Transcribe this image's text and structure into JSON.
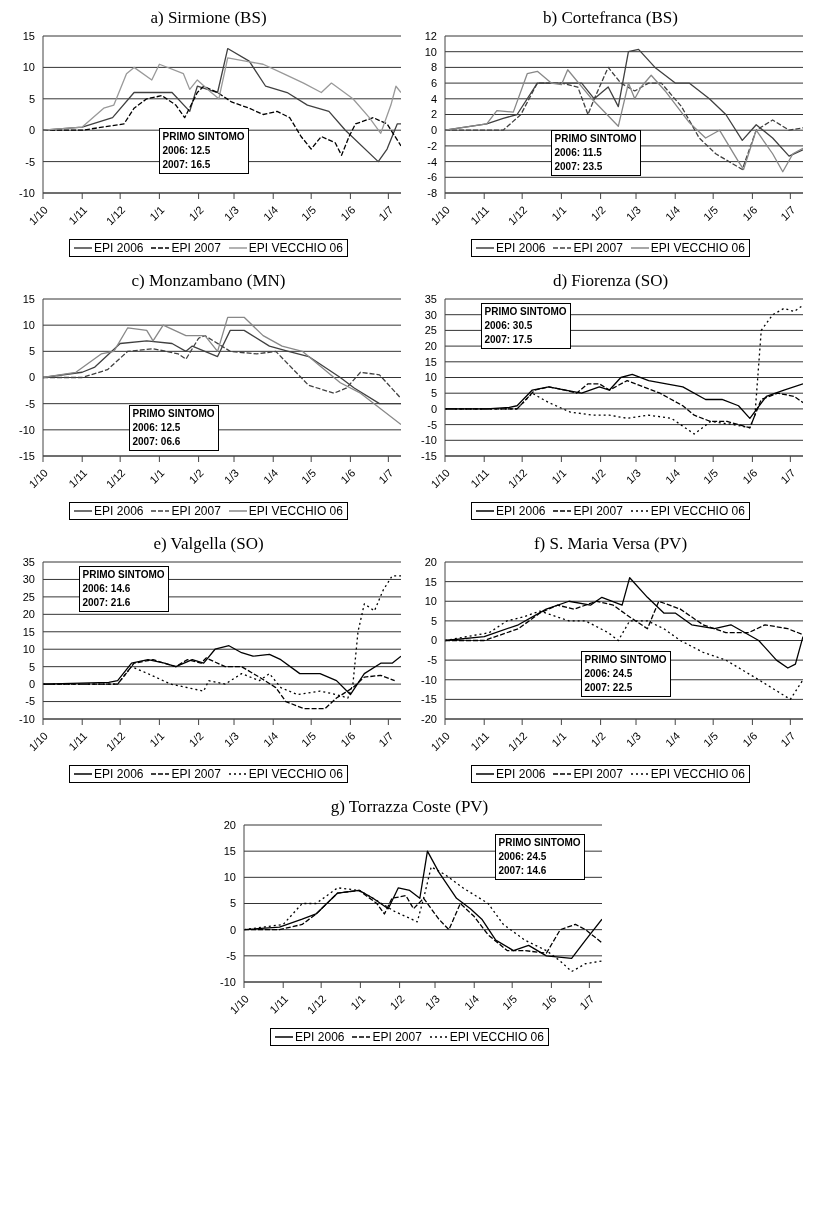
{
  "chart_data": [
    {
      "type": "line",
      "title": "a) Sirmione (BS)",
      "annotations": [
        "PRIMO SINTOMO",
        "2006: 12.5",
        "2007: 16.5"
      ],
      "xlim": [
        "2006-10-01",
        "2007-07-11"
      ],
      "xticks": [
        {
          "value": "2006-10-01",
          "label": "1/10"
        },
        {
          "value": "2006-11-01",
          "label": "1/11"
        },
        {
          "value": "2006-12-01",
          "label": "1/12"
        },
        {
          "value": "2007-01-01",
          "label": "1/1"
        },
        {
          "value": "2007-02-01",
          "label": "1/2"
        },
        {
          "value": "2007-03-01",
          "label": "1/3"
        },
        {
          "value": "2007-04-01",
          "label": "1/4"
        },
        {
          "value": "2007-05-01",
          "label": "1/5"
        },
        {
          "value": "2007-06-01",
          "label": "1/6"
        },
        {
          "value": "2007-07-01",
          "label": "1/7"
        }
      ],
      "ylim": [
        -10,
        15
      ],
      "yticks": [
        -10,
        -5,
        0,
        5,
        10,
        15
      ],
      "grid": "y",
      "legend": "bottom",
      "series": [
        {
          "name": "EPI 2006",
          "color": "#404040",
          "line_style": "solid",
          "x": [
            "2006-10-01",
            "2006-11-01",
            "2006-11-25",
            "2006-12-12",
            "2007-01-03",
            "2007-01-11",
            "2007-01-25",
            "2007-01-31",
            "2007-02-16",
            "2007-02-24",
            "2007-03-13",
            "2007-03-26",
            "2007-04-12",
            "2007-04-28",
            "2007-05-15",
            "2007-05-28",
            "2007-06-23",
            "2007-06-30",
            "2007-07-08",
            "2007-07-11"
          ],
          "values": [
            0,
            0.5,
            2,
            6,
            6,
            6,
            3,
            7,
            6,
            13,
            11,
            7,
            6,
            4,
            3,
            0,
            -5,
            -3,
            1,
            1
          ]
        },
        {
          "name": "EPI 2007",
          "color": "#000000",
          "line_style": "dashed",
          "x": [
            "2006-10-01",
            "2006-11-01",
            "2006-12-04",
            "2006-12-12",
            "2006-12-22",
            "2007-01-03",
            "2007-01-14",
            "2007-01-21",
            "2007-01-31",
            "2007-02-05",
            "2007-02-16",
            "2007-02-27",
            "2007-03-13",
            "2007-03-24",
            "2007-04-04",
            "2007-04-14",
            "2007-04-23",
            "2007-05-01",
            "2007-05-09",
            "2007-05-20",
            "2007-05-25",
            "2007-05-31",
            "2007-06-05",
            "2007-06-19",
            "2007-06-30",
            "2007-07-11"
          ],
          "values": [
            0,
            0,
            1,
            3.5,
            5,
            5.5,
            4,
            2,
            6,
            7,
            6,
            4.5,
            3.5,
            2.5,
            3,
            2,
            -1,
            -3,
            -1,
            -2,
            -4,
            -1,
            1,
            2,
            1,
            -2.5
          ]
        },
        {
          "name": "EPI VECCHIO 06",
          "color": "#999999",
          "line_style": "solid",
          "x": [
            "2006-10-01",
            "2006-11-01",
            "2006-11-18",
            "2006-11-26",
            "2006-12-06",
            "2006-12-12",
            "2006-12-26",
            "2007-01-01",
            "2007-01-20",
            "2007-01-25",
            "2007-01-31",
            "2007-02-11",
            "2007-02-17",
            "2007-02-24",
            "2007-03-10",
            "2007-03-24",
            "2007-04-09",
            "2007-04-25",
            "2007-05-09",
            "2007-05-17",
            "2007-06-03",
            "2007-06-16",
            "2007-06-25",
            "2007-07-03",
            "2007-07-07",
            "2007-07-11"
          ],
          "values": [
            0,
            0.5,
            3.5,
            4,
            9,
            10,
            8,
            10.5,
            9,
            6.5,
            8,
            6,
            5,
            11.5,
            11,
            10.5,
            9,
            7.5,
            6,
            7.5,
            5,
            2,
            -0.5,
            4,
            7,
            6
          ]
        }
      ]
    },
    {
      "type": "line",
      "title": "b) Cortefranca (BS)",
      "annotations": [
        "PRIMO SINTOMO",
        "2006: 11.5",
        "2007: 23.5"
      ],
      "xlim": [
        "2006-10-01",
        "2007-07-11"
      ],
      "xticks": [
        {
          "value": "2006-10-01",
          "label": "1/10"
        },
        {
          "value": "2006-11-01",
          "label": "1/11"
        },
        {
          "value": "2006-12-01",
          "label": "1/12"
        },
        {
          "value": "2007-01-01",
          "label": "1/1"
        },
        {
          "value": "2007-02-01",
          "label": "1/2"
        },
        {
          "value": "2007-03-01",
          "label": "1/3"
        },
        {
          "value": "2007-04-01",
          "label": "1/4"
        },
        {
          "value": "2007-05-01",
          "label": "1/5"
        },
        {
          "value": "2007-06-01",
          "label": "1/6"
        },
        {
          "value": "2007-07-01",
          "label": "1/7"
        }
      ],
      "ylim": [
        -8,
        12
      ],
      "yticks": [
        -8,
        -6,
        -4,
        -2,
        0,
        2,
        4,
        6,
        8,
        10,
        12
      ],
      "grid": "y",
      "legend": "bottom",
      "series": [
        {
          "name": "EPI 2006",
          "color": "#404040",
          "line_style": "solid",
          "x": [
            "2006-10-01",
            "2006-11-03",
            "2006-11-16",
            "2006-11-27",
            "2006-12-13",
            "2007-01-01",
            "2007-01-17",
            "2007-01-27",
            "2007-02-07",
            "2007-02-15",
            "2007-02-23",
            "2007-03-03",
            "2007-03-16",
            "2007-04-01",
            "2007-04-12",
            "2007-04-28",
            "2007-05-11",
            "2007-05-24",
            "2007-06-04",
            "2007-06-17",
            "2007-06-30",
            "2007-07-11"
          ],
          "values": [
            0,
            0.8,
            1.5,
            2,
            6,
            6,
            6,
            4,
            5.5,
            3,
            10,
            10.3,
            8,
            6,
            6,
            4,
            2,
            -1.3,
            0.7,
            -1,
            -3.3,
            -2.5
          ]
        },
        {
          "name": "EPI 2007",
          "color": "#404040",
          "line_style": "dashed",
          "x": [
            "2006-10-01",
            "2006-11-16",
            "2006-11-30",
            "2006-12-13",
            "2007-01-01",
            "2007-01-14",
            "2007-01-22",
            "2007-01-27",
            "2007-02-07",
            "2007-02-17",
            "2007-02-28",
            "2007-03-11",
            "2007-03-21",
            "2007-04-06",
            "2007-04-20",
            "2007-05-03",
            "2007-05-24",
            "2007-06-04",
            "2007-06-17",
            "2007-06-30",
            "2007-07-11"
          ],
          "values": [
            0,
            0,
            2,
            6,
            6,
            5.5,
            2,
            4,
            8,
            6,
            5,
            6,
            6,
            3,
            -1,
            -3,
            -5,
            0,
            1.3,
            0,
            0.3
          ]
        },
        {
          "name": "EPI VECCHIO 06",
          "color": "#888888",
          "line_style": "solid",
          "x": [
            "2006-10-01",
            "2006-11-03",
            "2006-11-11",
            "2006-11-24",
            "2006-12-05",
            "2006-12-13",
            "2006-12-24",
            "2007-01-01",
            "2007-01-06",
            "2007-01-25",
            "2007-02-15",
            "2007-02-23",
            "2007-02-28",
            "2007-03-05",
            "2007-03-13",
            "2007-03-24",
            "2007-04-12",
            "2007-04-25",
            "2007-05-06",
            "2007-05-21",
            "2007-05-25",
            "2007-06-04",
            "2007-06-17",
            "2007-06-25",
            "2007-07-03",
            "2007-07-11"
          ],
          "values": [
            0,
            0.8,
            2.5,
            2.3,
            7.2,
            7.5,
            6,
            5.8,
            7.7,
            4,
            0.5,
            6,
            4,
            5.5,
            7,
            5,
            1,
            -1,
            0,
            -4,
            -5,
            0,
            -3,
            -5.3,
            -3,
            -2.3
          ]
        }
      ]
    },
    {
      "type": "line",
      "title": "c) Monzambano  (MN)",
      "annotations": [
        "PRIMO SINTOMO",
        "2006: 12.5",
        "2007: 06.6"
      ],
      "xlim": [
        "2006-10-01",
        "2007-07-11"
      ],
      "xticks": [
        {
          "value": "2006-10-01",
          "label": "1/10"
        },
        {
          "value": "2006-11-01",
          "label": "1/11"
        },
        {
          "value": "2006-12-01",
          "label": "1/12"
        },
        {
          "value": "2007-01-01",
          "label": "1/1"
        },
        {
          "value": "2007-02-01",
          "label": "1/2"
        },
        {
          "value": "2007-03-01",
          "label": "1/3"
        },
        {
          "value": "2007-04-01",
          "label": "1/4"
        },
        {
          "value": "2007-05-01",
          "label": "1/5"
        },
        {
          "value": "2007-06-01",
          "label": "1/6"
        },
        {
          "value": "2007-07-01",
          "label": "1/7"
        }
      ],
      "ylim": [
        -15,
        15
      ],
      "yticks": [
        -15,
        -10,
        -5,
        0,
        5,
        10,
        15
      ],
      "grid": "y",
      "legend": "bottom",
      "series": [
        {
          "name": "EPI 2006",
          "color": "#404040",
          "line_style": "solid",
          "x": [
            "2006-10-01",
            "2006-11-01",
            "2006-11-11",
            "2006-12-01",
            "2006-12-22",
            "2007-01-11",
            "2007-01-22",
            "2007-01-27",
            "2007-02-16",
            "2007-02-26",
            "2007-03-09",
            "2007-03-29",
            "2007-04-13",
            "2007-04-29",
            "2007-05-24",
            "2007-06-04",
            "2007-06-24",
            "2007-07-11"
          ],
          "values": [
            0,
            1,
            2,
            6.5,
            7,
            6.5,
            5,
            6,
            4,
            9,
            9,
            6,
            5,
            4,
            0,
            -2,
            -5,
            -5
          ]
        },
        {
          "name": "EPI 2007",
          "color": "#404040",
          "line_style": "dashed",
          "x": [
            "2006-10-01",
            "2006-11-01",
            "2006-11-21",
            "2006-12-07",
            "2006-12-27",
            "2007-01-16",
            "2007-01-22",
            "2007-02-01",
            "2007-02-06",
            "2007-02-26",
            "2007-03-19",
            "2007-04-03",
            "2007-04-19",
            "2007-04-29",
            "2007-05-19",
            "2007-05-29",
            "2007-06-09",
            "2007-06-24",
            "2007-07-11"
          ],
          "values": [
            0,
            0,
            1.5,
            5,
            5.5,
            4.5,
            3.5,
            7.5,
            8,
            5,
            4.5,
            5,
            1,
            -1.5,
            -3,
            -2,
            1,
            0.5,
            -4
          ]
        },
        {
          "name": "EPI VECCHIO 06",
          "color": "#888888",
          "line_style": "solid",
          "x": [
            "2006-10-01",
            "2006-10-27",
            "2006-11-16",
            "2006-11-26",
            "2006-12-07",
            "2006-12-22",
            "2006-12-27",
            "2007-01-04",
            "2007-01-22",
            "2007-02-06",
            "2007-02-16",
            "2007-02-24",
            "2007-03-09",
            "2007-03-24",
            "2007-04-08",
            "2007-04-24",
            "2007-05-09",
            "2007-05-24",
            "2007-06-09",
            "2007-07-11"
          ],
          "values": [
            0,
            1,
            4.5,
            5,
            9.5,
            9,
            7,
            10,
            8,
            8,
            5,
            11.5,
            11.5,
            8,
            6,
            5,
            2,
            -1,
            -3,
            -9
          ]
        }
      ]
    },
    {
      "type": "line",
      "title": "d) Fiorenza (SO)",
      "annotations": [
        "PRIMO SINTOMO",
        "2006: 30.5",
        "2007: 17.5"
      ],
      "xlim": [
        "2006-10-01",
        "2007-07-11"
      ],
      "xticks": [
        {
          "value": "2006-10-01",
          "label": "1/10"
        },
        {
          "value": "2006-11-01",
          "label": "1/11"
        },
        {
          "value": "2006-12-01",
          "label": "1/12"
        },
        {
          "value": "2007-01-01",
          "label": "1/1"
        },
        {
          "value": "2007-02-01",
          "label": "1/2"
        },
        {
          "value": "2007-03-01",
          "label": "1/3"
        },
        {
          "value": "2007-04-01",
          "label": "1/4"
        },
        {
          "value": "2007-05-01",
          "label": "1/5"
        },
        {
          "value": "2007-06-01",
          "label": "1/6"
        },
        {
          "value": "2007-07-01",
          "label": "1/7"
        }
      ],
      "ylim": [
        -15,
        35
      ],
      "yticks": [
        -15,
        -10,
        -5,
        0,
        5,
        10,
        15,
        20,
        25,
        30,
        35
      ],
      "grid": "y",
      "legend": "bottom",
      "series": [
        {
          "name": "EPI 2006",
          "color": "#000000",
          "line_style": "solid",
          "x": [
            "2006-10-01",
            "2006-11-03",
            "2006-11-21",
            "2006-11-27",
            "2006-12-09",
            "2006-12-22",
            "2007-01-04",
            "2007-01-17",
            "2007-01-31",
            "2007-02-08",
            "2007-02-17",
            "2007-02-26",
            "2007-03-11",
            "2007-03-25",
            "2007-04-07",
            "2007-04-25",
            "2007-05-08",
            "2007-05-21",
            "2007-05-30",
            "2007-06-12",
            "2007-06-26",
            "2007-07-11"
          ],
          "values": [
            0,
            0,
            0.5,
            1,
            6,
            7,
            6,
            5,
            7,
            6,
            10,
            11,
            9,
            8,
            7,
            3,
            3,
            1,
            -3,
            4,
            6,
            8
          ]
        },
        {
          "name": "EPI 2007",
          "color": "#000000",
          "line_style": "dashed",
          "x": [
            "2006-10-01",
            "2006-11-27",
            "2006-12-11",
            "2006-12-22",
            "2007-01-04",
            "2007-01-13",
            "2007-01-22",
            "2007-01-31",
            "2007-02-08",
            "2007-02-22",
            "2007-03-07",
            "2007-03-20",
            "2007-04-07",
            "2007-04-16",
            "2007-04-29",
            "2007-05-12",
            "2007-05-30",
            "2007-06-08",
            "2007-06-21",
            "2007-07-04",
            "2007-07-11"
          ],
          "values": [
            0,
            0,
            6,
            7,
            6,
            5,
            8,
            8,
            6,
            9,
            7,
            5,
            1,
            -2,
            -4,
            -4,
            -6,
            3,
            5,
            4,
            2
          ]
        },
        {
          "name": "EPI VECCHIO 06",
          "color": "#000000",
          "line_style": "dotted",
          "x": [
            "2006-10-01",
            "2006-11-27",
            "2006-12-09",
            "2006-12-22",
            "2007-01-08",
            "2007-01-26",
            "2007-02-08",
            "2007-02-22",
            "2007-03-11",
            "2007-03-29",
            "2007-04-16",
            "2007-04-29",
            "2007-05-17",
            "2007-05-30",
            "2007-06-03",
            "2007-06-08",
            "2007-06-17",
            "2007-06-26",
            "2007-07-04",
            "2007-07-11"
          ],
          "values": [
            0,
            0,
            5,
            2,
            -1,
            -2,
            -2,
            -3,
            -2,
            -3,
            -8,
            -4,
            -5,
            -6,
            -2,
            25,
            30,
            32,
            31,
            33
          ]
        }
      ]
    },
    {
      "type": "line",
      "title": "e) Valgella (SO)",
      "annotations": [
        "PRIMO SINTOMO",
        "2006: 14.6",
        "2007: 21.6"
      ],
      "xlim": [
        "2006-10-01",
        "2007-07-11"
      ],
      "xticks": [
        {
          "value": "2006-10-01",
          "label": "1/10"
        },
        {
          "value": "2006-11-01",
          "label": "1/11"
        },
        {
          "value": "2006-12-01",
          "label": "1/12"
        },
        {
          "value": "2007-01-01",
          "label": "1/1"
        },
        {
          "value": "2007-02-01",
          "label": "1/2"
        },
        {
          "value": "2007-03-01",
          "label": "1/3"
        },
        {
          "value": "2007-04-01",
          "label": "1/4"
        },
        {
          "value": "2007-05-01",
          "label": "1/5"
        },
        {
          "value": "2007-06-01",
          "label": "1/6"
        },
        {
          "value": "2007-07-01",
          "label": "1/7"
        }
      ],
      "ylim": [
        -10,
        35
      ],
      "yticks": [
        -10,
        -5,
        0,
        5,
        10,
        15,
        20,
        25,
        30,
        35
      ],
      "grid": "y",
      "legend": "bottom",
      "series": [
        {
          "name": "EPI 2006",
          "color": "#000000",
          "line_style": "solid",
          "x": [
            "2006-10-01",
            "2006-11-22",
            "2006-11-29",
            "2006-12-10",
            "2006-12-23",
            "2007-01-05",
            "2007-01-14",
            "2007-01-27",
            "2007-02-05",
            "2007-02-14",
            "2007-02-25",
            "2007-03-07",
            "2007-03-16",
            "2007-03-29",
            "2007-04-07",
            "2007-04-22",
            "2007-05-08",
            "2007-05-21",
            "2007-06-01",
            "2007-06-12",
            "2007-06-25",
            "2007-07-04",
            "2007-07-11"
          ],
          "values": [
            0,
            0.5,
            1,
            6,
            7,
            6,
            5,
            7,
            6,
            10,
            11,
            9,
            8,
            8.5,
            7,
            3,
            3,
            1,
            -3,
            3,
            6,
            6,
            8
          ]
        },
        {
          "name": "EPI 2007",
          "color": "#000000",
          "line_style": "dashed",
          "x": [
            "2006-10-01",
            "2006-11-29",
            "2006-12-12",
            "2006-12-27",
            "2007-01-14",
            "2007-01-23",
            "2007-02-03",
            "2007-02-07",
            "2007-02-22",
            "2007-03-07",
            "2007-03-21",
            "2007-04-03",
            "2007-04-11",
            "2007-04-25",
            "2007-05-12",
            "2007-05-21",
            "2007-06-03",
            "2007-06-12",
            "2007-06-25",
            "2007-07-06"
          ],
          "values": [
            0,
            0,
            6,
            7,
            5,
            7,
            6,
            7.5,
            5,
            5,
            2,
            -1,
            -5,
            -7,
            -7,
            -4,
            -1,
            2,
            2.5,
            1
          ]
        },
        {
          "name": "EPI VECCHIO 06",
          "color": "#000000",
          "line_style": "dotted",
          "x": [
            "2006-10-01",
            "2006-11-29",
            "2006-12-10",
            "2006-12-23",
            "2007-01-10",
            "2007-02-05",
            "2007-02-09",
            "2007-02-22",
            "2007-03-07",
            "2007-03-21",
            "2007-03-29",
            "2007-04-07",
            "2007-04-20",
            "2007-05-08",
            "2007-05-21",
            "2007-05-30",
            "2007-06-03",
            "2007-06-07",
            "2007-06-12",
            "2007-06-20",
            "2007-06-27",
            "2007-07-04",
            "2007-07-11"
          ],
          "values": [
            0,
            0,
            5,
            3,
            0,
            -2,
            1,
            0,
            3,
            1,
            3,
            -1,
            -3,
            -2,
            -3,
            -4,
            0,
            15,
            23,
            21,
            27,
            31,
            31
          ]
        }
      ]
    },
    {
      "type": "line",
      "title": "f) S. Maria Versa (PV)",
      "annotations": [
        "PRIMO SINTOMO",
        "2006: 24.5",
        "2007: 22.5"
      ],
      "xlim": [
        "2006-10-01",
        "2007-07-11"
      ],
      "xticks": [
        {
          "value": "2006-10-01",
          "label": "1/10"
        },
        {
          "value": "2006-11-01",
          "label": "1/11"
        },
        {
          "value": "2006-12-01",
          "label": "1/12"
        },
        {
          "value": "2007-01-01",
          "label": "1/1"
        },
        {
          "value": "2007-02-01",
          "label": "1/2"
        },
        {
          "value": "2007-03-01",
          "label": "1/3"
        },
        {
          "value": "2007-04-01",
          "label": "1/4"
        },
        {
          "value": "2007-05-01",
          "label": "1/5"
        },
        {
          "value": "2007-06-01",
          "label": "1/6"
        },
        {
          "value": "2007-07-01",
          "label": "1/7"
        }
      ],
      "ylim": [
        -20,
        20
      ],
      "yticks": [
        -20,
        -15,
        -10,
        -5,
        0,
        5,
        10,
        15,
        20
      ],
      "grid": "y",
      "legend": "bottom",
      "series": [
        {
          "name": "EPI 2006",
          "color": "#000000",
          "line_style": "solid",
          "x": [
            "2006-10-01",
            "2006-11-01",
            "2006-11-28",
            "2006-12-20",
            "2007-01-07",
            "2007-01-24",
            "2007-02-02",
            "2007-02-18",
            "2007-02-24",
            "2007-03-10",
            "2007-03-23",
            "2007-04-01",
            "2007-04-14",
            "2007-05-02",
            "2007-05-15",
            "2007-06-06",
            "2007-06-20",
            "2007-06-29",
            "2007-07-05",
            "2007-07-11"
          ],
          "values": [
            0,
            1,
            4,
            8,
            10,
            9,
            11,
            9,
            16,
            11,
            7,
            7,
            4,
            3,
            4,
            0,
            -5,
            -7,
            -6,
            1
          ]
        },
        {
          "name": "EPI 2007",
          "color": "#000000",
          "line_style": "dashed",
          "x": [
            "2006-10-01",
            "2006-11-01",
            "2006-11-28",
            "2006-12-15",
            "2006-12-29",
            "2007-01-11",
            "2007-01-29",
            "2007-02-11",
            "2007-02-24",
            "2007-03-10",
            "2007-03-19",
            "2007-04-05",
            "2007-04-23",
            "2007-05-11",
            "2007-05-29",
            "2007-06-11",
            "2007-06-29",
            "2007-07-11"
          ],
          "values": [
            0,
            0,
            3,
            7,
            9,
            8,
            10,
            9,
            6,
            3,
            10,
            8,
            4,
            2,
            2,
            4,
            3,
            1.5
          ]
        },
        {
          "name": "EPI VECCHIO 06",
          "color": "#000000",
          "line_style": "dotted",
          "x": [
            "2006-10-01",
            "2006-11-05",
            "2006-11-19",
            "2006-12-02",
            "2006-12-15",
            "2007-01-07",
            "2007-01-20",
            "2007-02-07",
            "2007-02-15",
            "2007-02-24",
            "2007-03-10",
            "2007-03-23",
            "2007-04-05",
            "2007-04-23",
            "2007-05-11",
            "2007-06-06",
            "2007-07-01",
            "2007-07-11"
          ],
          "values": [
            0,
            2,
            5,
            6,
            7.5,
            5,
            5,
            2,
            0,
            5,
            5,
            3,
            0,
            -3,
            -5,
            -10,
            -15,
            -10
          ]
        }
      ]
    },
    {
      "type": "line",
      "title": "g) Torrazza Coste (PV)",
      "annotations": [
        "PRIMO SINTOMO",
        "2006: 24.5",
        "2007: 14.6"
      ],
      "xlim": [
        "2006-10-01",
        "2007-07-11"
      ],
      "xticks": [
        {
          "value": "2006-10-01",
          "label": "1/10"
        },
        {
          "value": "2006-11-01",
          "label": "1/11"
        },
        {
          "value": "2006-12-01",
          "label": "1/12"
        },
        {
          "value": "2007-01-01",
          "label": "1/1"
        },
        {
          "value": "2007-02-01",
          "label": "1/2"
        },
        {
          "value": "2007-03-01",
          "label": "1/3"
        },
        {
          "value": "2007-04-01",
          "label": "1/4"
        },
        {
          "value": "2007-05-01",
          "label": "1/5"
        },
        {
          "value": "2007-06-01",
          "label": "1/6"
        },
        {
          "value": "2007-07-01",
          "label": "1/7"
        }
      ],
      "ylim": [
        -10,
        20
      ],
      "yticks": [
        -10,
        -5,
        0,
        5,
        10,
        15,
        20
      ],
      "grid": "y",
      "legend": "bottom",
      "series": [
        {
          "name": "EPI 2006",
          "color": "#000000",
          "line_style": "solid",
          "x": [
            "2006-10-01",
            "2006-10-29",
            "2006-11-16",
            "2006-11-27",
            "2006-12-14",
            "2006-12-31",
            "2007-01-11",
            "2007-01-23",
            "2007-01-31",
            "2007-02-09",
            "2007-02-17",
            "2007-02-23",
            "2007-03-04",
            "2007-03-18",
            "2007-03-29",
            "2007-04-07",
            "2007-04-18",
            "2007-05-02",
            "2007-05-14",
            "2007-05-28",
            "2007-06-17",
            "2007-06-28",
            "2007-07-11"
          ],
          "values": [
            0,
            0.5,
            2,
            3,
            7,
            7.5,
            6,
            4,
            8,
            7.5,
            6,
            15,
            11,
            6,
            4,
            2,
            -2,
            -4,
            -3,
            -5,
            -5.5,
            -2,
            2
          ]
        },
        {
          "name": "EPI 2007",
          "color": "#000000",
          "line_style": "dashed",
          "x": [
            "2006-10-01",
            "2006-10-29",
            "2006-11-16",
            "2006-11-27",
            "2006-12-14",
            "2006-12-31",
            "2007-01-14",
            "2007-01-20",
            "2007-01-26",
            "2007-02-06",
            "2007-02-12",
            "2007-02-20",
            "2007-03-04",
            "2007-03-12",
            "2007-03-21",
            "2007-04-01",
            "2007-04-12",
            "2007-04-27",
            "2007-05-11",
            "2007-05-28",
            "2007-06-08",
            "2007-06-20",
            "2007-06-28",
            "2007-07-11"
          ],
          "values": [
            0,
            0,
            1,
            3,
            7,
            7.5,
            5,
            3,
            6,
            6.5,
            4,
            6,
            2,
            0,
            5,
            2.5,
            -1,
            -4,
            -4,
            -4.5,
            0,
            1,
            0,
            -2.5
          ]
        },
        {
          "name": "EPI VECCHIO 06",
          "color": "#000000",
          "line_style": "dotted",
          "x": [
            "2006-10-01",
            "2006-11-01",
            "2006-11-16",
            "2006-11-27",
            "2006-12-14",
            "2006-12-31",
            "2007-01-11",
            "2007-01-28",
            "2007-02-15",
            "2007-02-20",
            "2007-02-26",
            "2007-03-09",
            "2007-03-23",
            "2007-04-12",
            "2007-04-24",
            "2007-05-11",
            "2007-05-28",
            "2007-06-08",
            "2007-06-17",
            "2007-06-28",
            "2007-07-11"
          ],
          "values": [
            0,
            1,
            5,
            5,
            8,
            7.5,
            6,
            3.5,
            1.5,
            6,
            12,
            10.5,
            8,
            5,
            1,
            -2,
            -4,
            -6,
            -8,
            -6.5,
            -6
          ]
        }
      ]
    }
  ]
}
